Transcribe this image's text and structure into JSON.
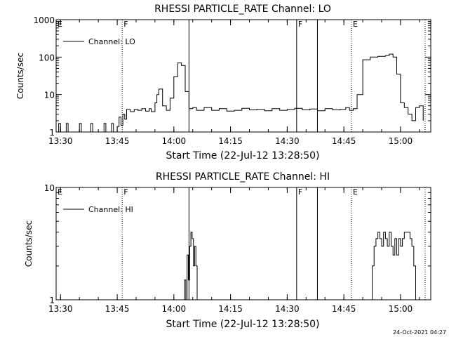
{
  "footer_timestamp": "24-Oct-2021 04:27",
  "chart_data": [
    {
      "type": "line",
      "title": "RHESSI PARTICLE_RATE Channel: LO",
      "xlabel": "Start Time (22-Jul-12 13:28:50)",
      "ylabel": "Counts/sec",
      "yscale": "log",
      "xlim": [
        "13:28:50",
        "15:08"
      ],
      "ylim": [
        1,
        1000
      ],
      "xticks": [
        "13:30",
        "13:45",
        "14:00",
        "14:15",
        "14:30",
        "14:45",
        "15:00"
      ],
      "yticks": [
        "1",
        "10",
        "100",
        "1000"
      ],
      "legend": {
        "label": "Channel: LO",
        "placement": "top-left"
      },
      "series": [
        {
          "name": "Channel: LO",
          "x": [
            "13:28:50",
            "13:29:30",
            "13:30:00",
            "13:30:40",
            "13:31:30",
            "13:32:00",
            "13:32:30",
            "13:34:30",
            "13:35:00",
            "13:35:30",
            "13:37:30",
            "13:38:00",
            "13:38:30",
            "13:41:00",
            "13:41:30",
            "13:42:00",
            "13:43:00",
            "13:43:30",
            "13:44:00",
            "13:45:00",
            "13:45:30",
            "13:46:00",
            "13:46:30",
            "13:47:00",
            "13:47:30",
            "13:48:30",
            "13:49:30",
            "13:50:30",
            "13:51:30",
            "13:52:30",
            "13:53:30",
            "13:54:00",
            "13:55:00",
            "13:55:30",
            "13:56:00",
            "13:57:00",
            "13:58:00",
            "13:59:00",
            "14:00:00",
            "14:01:00",
            "14:02:00",
            "14:03:00",
            "14:04:00",
            "14:05:00",
            "14:06:00",
            "14:08:00",
            "14:10:00",
            "14:12:00",
            "14:14:00",
            "14:16:00",
            "14:18:00",
            "14:20:00",
            "14:22:00",
            "14:24:00",
            "14:26:00",
            "14:28:00",
            "14:30:00",
            "14:32:00",
            "14:34:00",
            "14:36:00",
            "14:38:00",
            "14:40:00",
            "14:42:00",
            "14:44:00",
            "14:45:30",
            "14:46:30",
            "14:47:30",
            "14:48:30",
            "14:50:00",
            "14:52:00",
            "14:54:00",
            "14:56:00",
            "14:57:00",
            "14:58:00",
            "14:59:00",
            "15:00:00",
            "15:01:00",
            "15:02:00",
            "15:03:00",
            "15:04:00",
            "15:05:00",
            "15:06:00"
          ],
          "y": [
            1,
            1.7,
            1,
            1,
            1.7,
            1,
            1,
            1,
            1.7,
            1,
            1,
            1.7,
            1,
            1,
            1.7,
            1,
            1,
            1.7,
            1,
            1.4,
            2.5,
            1.5,
            3,
            2.2,
            4,
            3.5,
            4,
            3.8,
            4.2,
            3.6,
            4.2,
            3.5,
            6,
            10,
            14,
            5,
            3.8,
            8,
            30,
            70,
            60,
            12,
            4.2,
            4.5,
            3.8,
            4.5,
            3.8,
            4.2,
            3.6,
            3.8,
            4.3,
            3.9,
            4.0,
            3.7,
            4.2,
            3.8,
            4.0,
            4.3,
            3.9,
            4.1,
            3.7,
            4.2,
            3.9,
            4.0,
            4.5,
            3.8,
            4.2,
            10,
            85,
            100,
            105,
            110,
            120,
            100,
            35,
            6,
            4.5,
            3,
            2,
            4.5,
            5,
            2
          ]
        }
      ],
      "markers": [
        {
          "label": "E",
          "time": "13:28:50",
          "style": "dotted"
        },
        {
          "label": "F",
          "time": "13:46:20",
          "style": "dotted"
        },
        {
          "label": "",
          "time": "14:04:00",
          "style": "solid"
        },
        {
          "label": "F",
          "time": "14:32:30",
          "style": "solid"
        },
        {
          "label": "",
          "time": "14:38:00",
          "style": "solid"
        },
        {
          "label": "E",
          "time": "14:47:00",
          "style": "dotted"
        },
        {
          "label": "",
          "time": "15:06:30",
          "style": "dotted"
        }
      ]
    },
    {
      "type": "line",
      "title": "RHESSI PARTICLE_RATE Channel: HI",
      "xlabel": "Start Time (22-Jul-12 13:28:50)",
      "ylabel": "Counts/sec",
      "yscale": "log",
      "xlim": [
        "13:28:50",
        "15:08"
      ],
      "ylim": [
        1,
        10
      ],
      "xticks": [
        "13:30",
        "13:45",
        "14:00",
        "14:15",
        "14:30",
        "14:45",
        "15:00"
      ],
      "yticks": [
        "1",
        "10"
      ],
      "legend": {
        "label": "Channel: HI",
        "placement": "top-left"
      },
      "series": [
        {
          "name": "Channel: HI",
          "x": [
            "14:02:30",
            "14:02:50",
            "14:03:10",
            "14:03:30",
            "14:03:50",
            "14:04:10",
            "14:04:30",
            "14:04:50",
            "14:05:10",
            "14:05:30",
            "14:05:50",
            "14:06:10"
          ],
          "y": [
            1,
            1.5,
            1,
            2.5,
            1.5,
            3,
            4,
            3.5,
            2,
            3,
            2,
            1
          ],
          "segment": 1
        },
        {
          "name": "Channel: HI",
          "x": [
            "14:52:00",
            "14:52:30",
            "14:53:00",
            "14:53:30",
            "14:54:00",
            "14:54:30",
            "14:55:00",
            "14:55:30",
            "14:56:00",
            "14:56:30",
            "14:57:00",
            "14:57:30",
            "14:58:00",
            "14:58:30",
            "14:59:00",
            "14:59:30",
            "15:00:00",
            "15:00:30",
            "15:01:00",
            "15:01:30",
            "15:02:00",
            "15:02:30",
            "15:03:00",
            "15:03:30",
            "15:04:00"
          ],
          "y": [
            1,
            2,
            3,
            3.5,
            4,
            3.5,
            3,
            4,
            3.5,
            3,
            4,
            3,
            2.5,
            3.5,
            2.5,
            3.5,
            3,
            3.5,
            4,
            4,
            4,
            3.5,
            3,
            2,
            1
          ],
          "segment": 2
        }
      ],
      "markers": [
        {
          "label": "E",
          "time": "13:28:50",
          "style": "dotted"
        },
        {
          "label": "F",
          "time": "13:46:20",
          "style": "dotted"
        },
        {
          "label": "",
          "time": "14:04:00",
          "style": "solid"
        },
        {
          "label": "F",
          "time": "14:32:30",
          "style": "solid"
        },
        {
          "label": "",
          "time": "14:38:00",
          "style": "solid"
        },
        {
          "label": "E",
          "time": "14:47:00",
          "style": "dotted"
        },
        {
          "label": "",
          "time": "15:06:30",
          "style": "dotted"
        }
      ]
    }
  ]
}
